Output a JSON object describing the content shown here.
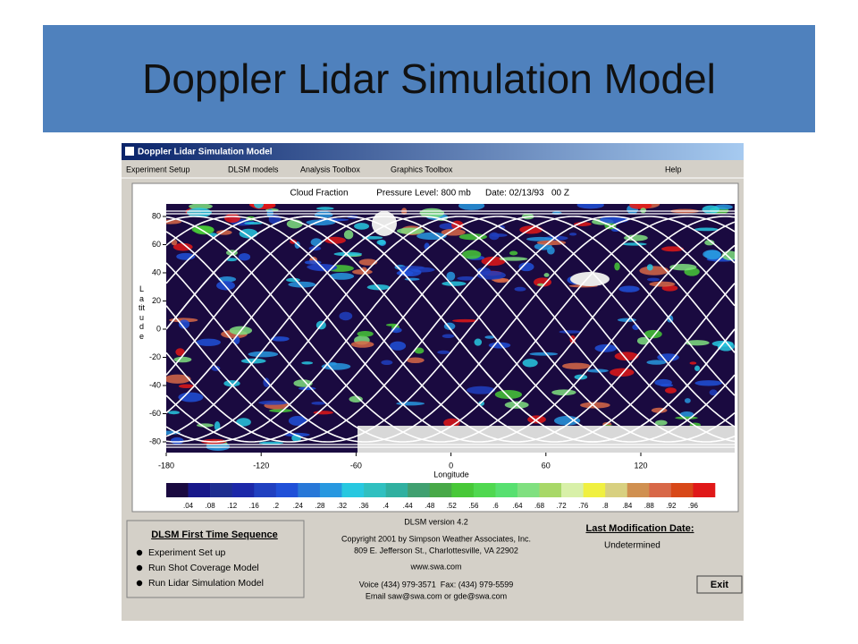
{
  "slide": {
    "title": "Doppler Lidar Simulation Model"
  },
  "window": {
    "title": "Doppler Lidar Simulation Model",
    "menu": [
      "Experiment Setup",
      "DLSM models",
      "Analysis Toolbox",
      "Graphics Toolbox",
      "Help"
    ]
  },
  "plot": {
    "header": [
      "Cloud Fraction",
      "Pressure Level: 800 mb",
      "Date: 02/13/93   00 Z"
    ],
    "y_label": "Latitude",
    "x_label": "Longitude",
    "yticks": [
      80,
      60,
      40,
      20,
      0,
      -20,
      -40,
      -60,
      -80
    ],
    "xticks": [
      -180,
      -120,
      -60,
      0,
      60,
      120
    ],
    "colorbar": {
      "colors": [
        "#1a0a40",
        "#18188a",
        "#1e2e90",
        "#1c28a8",
        "#2040c0",
        "#2050d8",
        "#2878d8",
        "#2898e0",
        "#28c8e0",
        "#30c0c0",
        "#30b0a0",
        "#40a070",
        "#48a848",
        "#48c838",
        "#50d850",
        "#58e070",
        "#80e080",
        "#a8d868",
        "#d8f0a8",
        "#f0f040",
        "#d8d080",
        "#d09050",
        "#d86848",
        "#d84818",
        "#e01818"
      ],
      "labels": [
        ".04",
        ".08",
        ".12",
        ".16",
        ".2",
        ".24",
        ".28",
        ".32",
        ".36",
        ".4",
        ".44",
        ".48",
        ".52",
        ".56",
        ".6",
        ".64",
        ".68",
        ".72",
        ".76",
        ".8",
        ".84",
        ".88",
        ".92",
        ".96"
      ]
    }
  },
  "sequence": {
    "title": "DLSM First Time Sequence",
    "items": [
      "Experiment Set up",
      "Run Shot Coverage Model",
      "Run Lidar Simulation Model"
    ]
  },
  "info": {
    "lines": [
      "DLSM version 4.2",
      "Copyright 2001 by Simpson Weather Associates, Inc.",
      "809 E. Jefferson St., Charlottesville, VA 22902",
      "www.swa.com",
      "Voice (434) 979-3571  Fax: (434) 979-5599",
      "Email saw@swa.com or gde@swa.com"
    ]
  },
  "modification": {
    "title": "Last Modification Date:",
    "value": "Undetermined"
  },
  "exit_button": "Exit"
}
